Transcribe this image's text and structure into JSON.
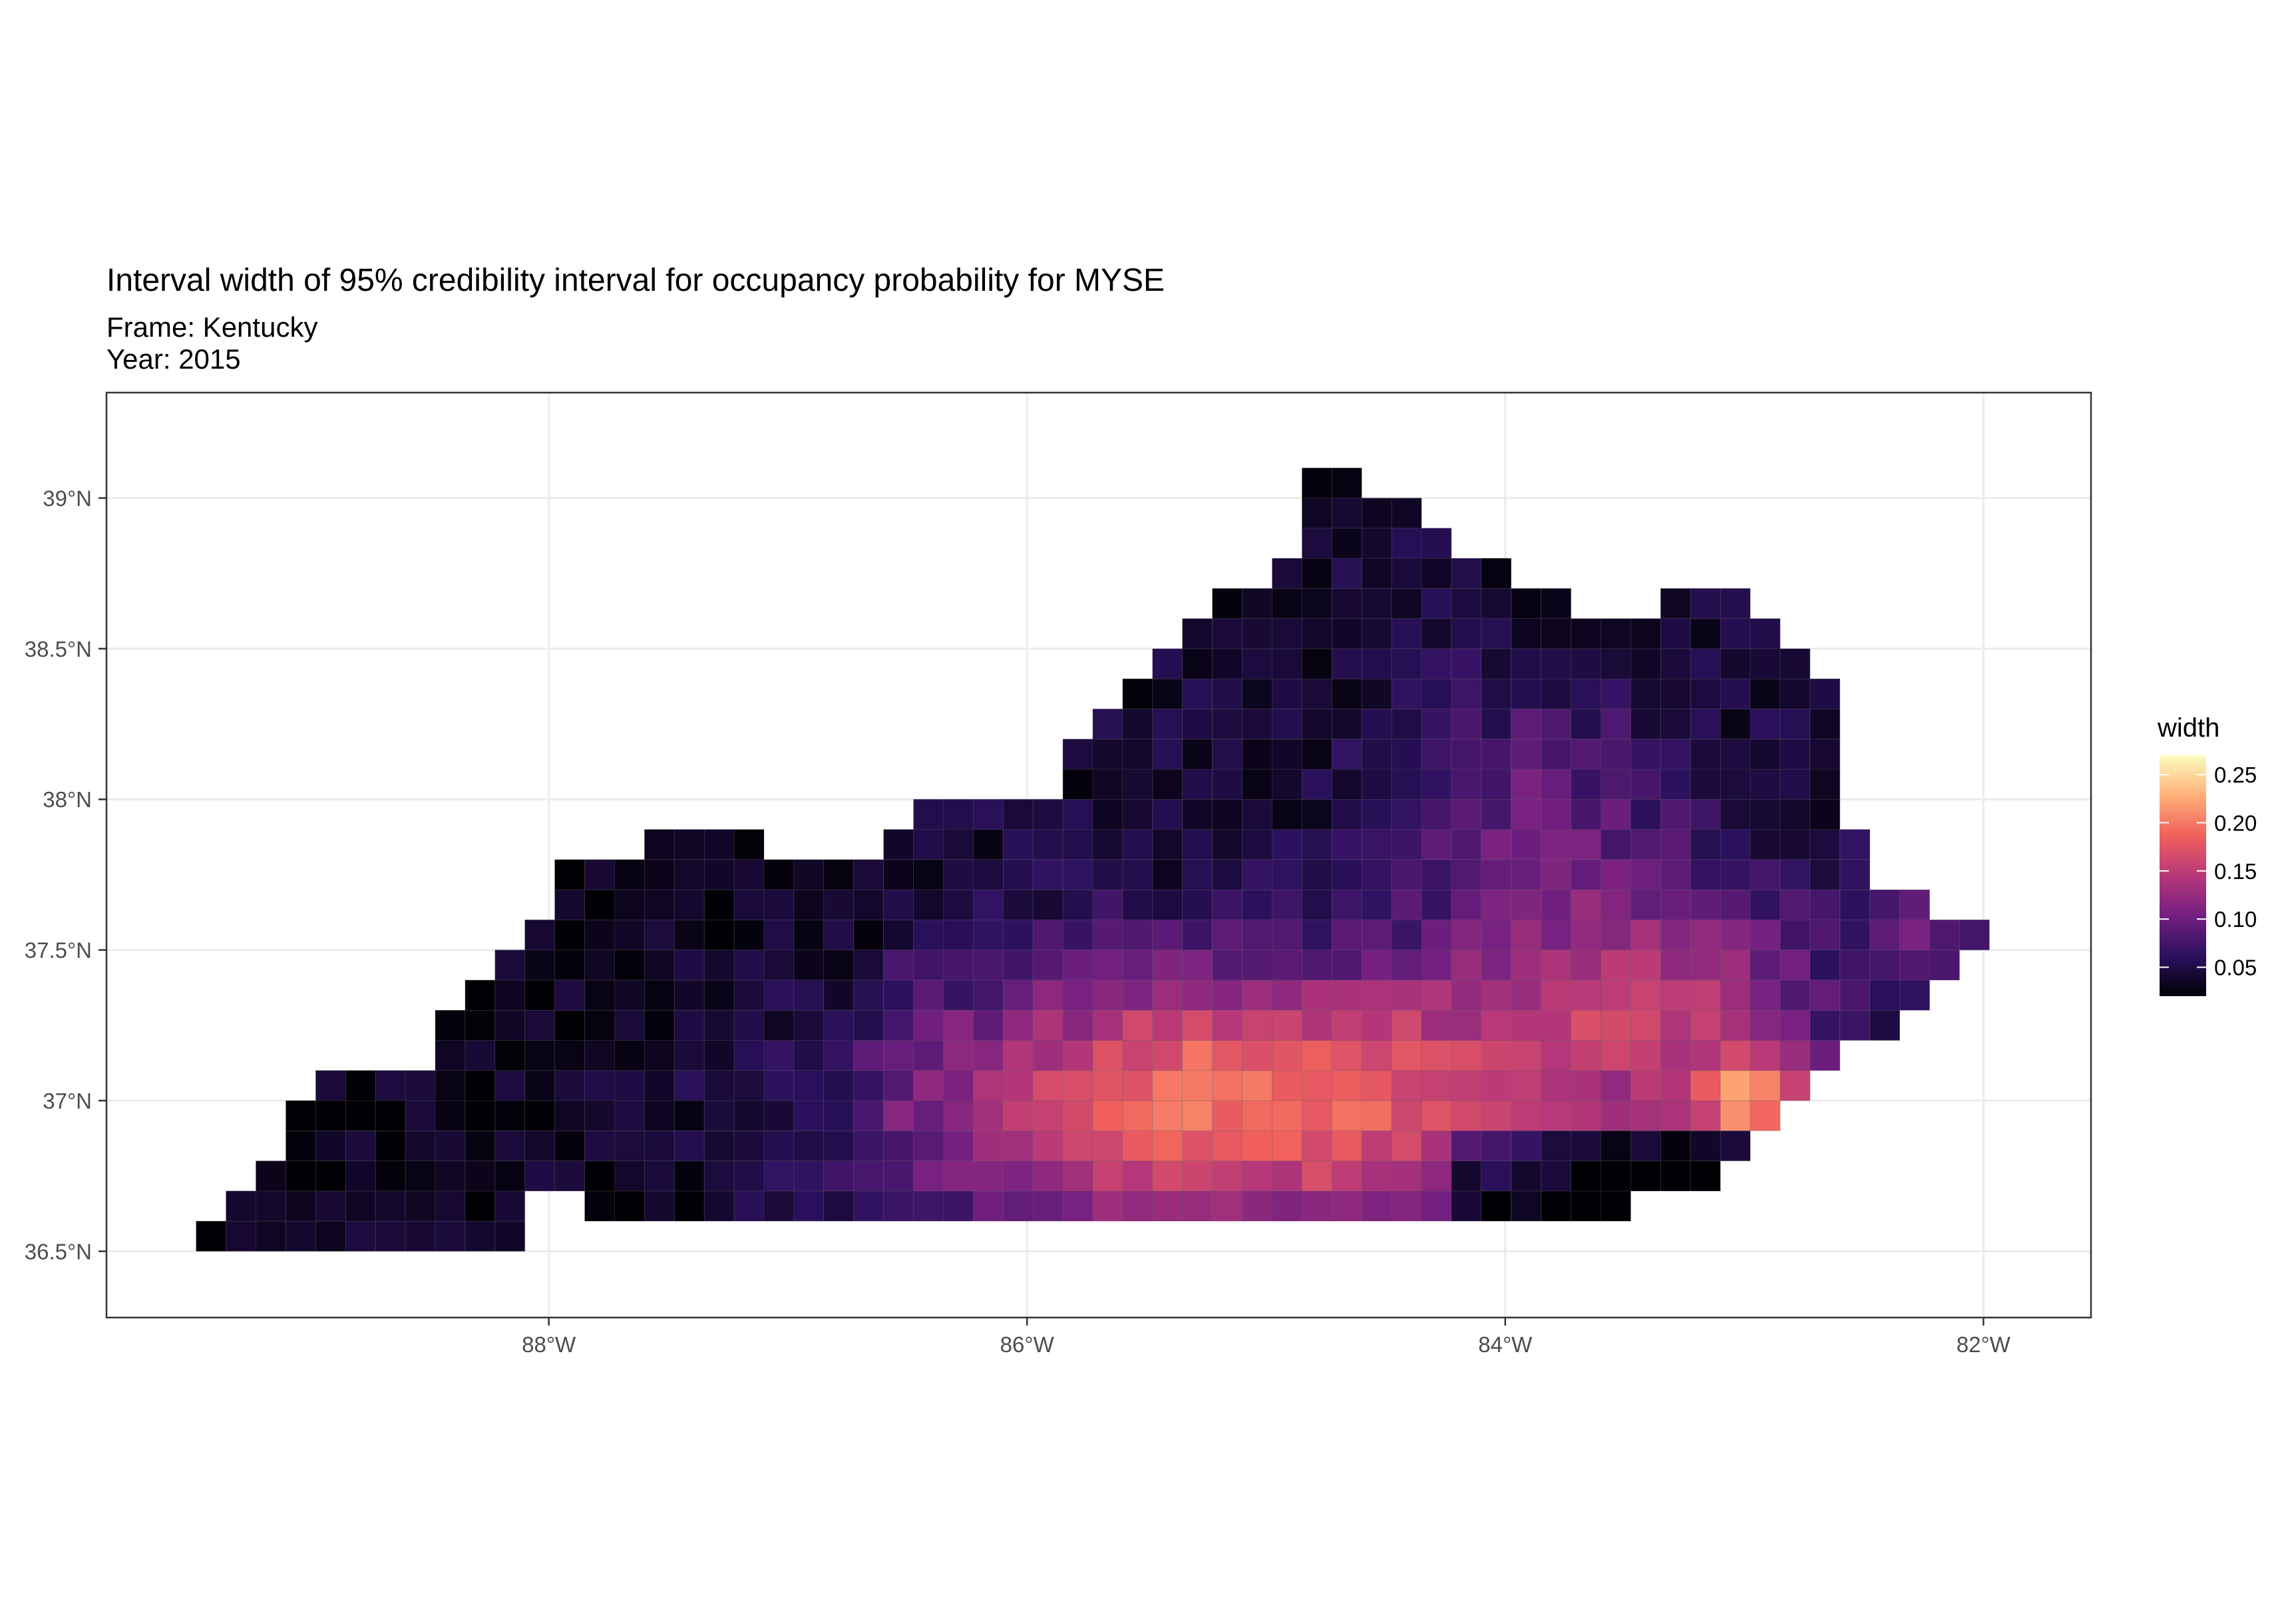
{
  "title": "Interval width of 95% credibility interval for occupancy probability for MYSE",
  "subtitle_lines": [
    "Frame: Kentucky",
    "Year: 2015"
  ],
  "chart_data": {
    "type": "heatmap",
    "x_axis": {
      "ticks": [
        -88,
        -86,
        -84,
        -82
      ],
      "tick_labels": [
        "88°W",
        "86°W",
        "84°W",
        "82°W"
      ],
      "range": [
        -89.85,
        -81.55
      ]
    },
    "y_axis": {
      "ticks": [
        36.5,
        37,
        37.5,
        38,
        38.5,
        39
      ],
      "tick_labels": [
        "36.5°N",
        "37°N",
        "37.5°N",
        "38°N",
        "38.5°N",
        "39°N"
      ],
      "range": [
        36.28,
        39.35
      ]
    },
    "grid": true,
    "legend": {
      "title": "width",
      "position": "right",
      "range": [
        0.02,
        0.27
      ],
      "ticks": [
        0.05,
        0.1,
        0.15,
        0.2,
        0.25
      ],
      "tick_labels": [
        "0.05",
        "0.10",
        "0.15",
        "0.20",
        "0.25"
      ],
      "colors": [
        "#000004",
        "#2c115f",
        "#721f81",
        "#b73779",
        "#f1605d",
        "#feb078",
        "#fcfdbf"
      ]
    },
    "cell_size_deg": [
      0.125,
      0.1
    ],
    "notes": "Grid cells covering Kentucky, colored by width; low (~0.03) in the west and north, high (0.15-0.21) in the south-central region, up to ~0.27 near 83.0W 37.0N."
  }
}
